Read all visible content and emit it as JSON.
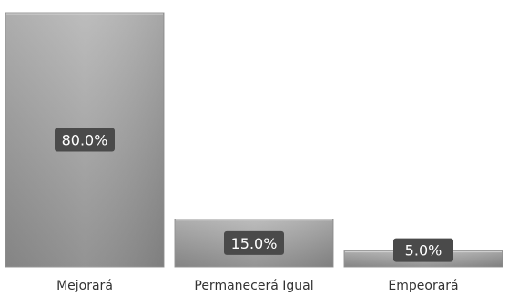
{
  "chart_data": {
    "type": "bar",
    "title": "",
    "xlabel": "",
    "ylabel": "",
    "categories": [
      "Mejorará",
      "Permanecerá Igual",
      "Empeorará"
    ],
    "values": [
      80.0,
      15.0,
      5.0
    ],
    "data_labels": [
      "80.0%",
      "15.0%",
      "5.0%"
    ],
    "unit": "%",
    "ylim": [
      0,
      100
    ],
    "grid": false,
    "legend": "none",
    "colors": {
      "bar_fill_top": "#b8b8b8",
      "bar_fill_bottom": "#8c8c8c",
      "bar_stroke": "#9a9a9a",
      "label_box": "#4a4a4a",
      "label_text": "#ffffff",
      "axis_text": "#333333"
    }
  }
}
